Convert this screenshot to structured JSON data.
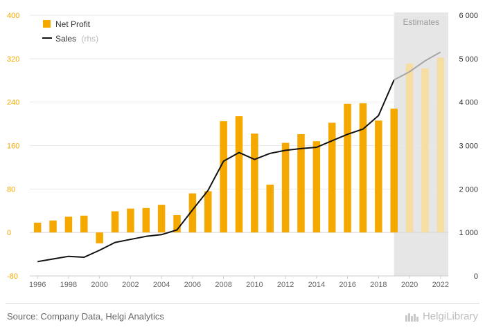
{
  "chart_data": {
    "type": "bar",
    "x": [
      1996,
      1997,
      1998,
      1999,
      2000,
      2001,
      2002,
      2003,
      2004,
      2005,
      2006,
      2007,
      2008,
      2009,
      2010,
      2011,
      2012,
      2013,
      2014,
      2015,
      2016,
      2017,
      2018,
      2019,
      2020,
      2021,
      2022
    ],
    "x_tick_labels": [
      "1996",
      "1998",
      "2000",
      "2002",
      "2004",
      "2006",
      "2008",
      "2010",
      "2012",
      "2014",
      "2016",
      "2018",
      "2020",
      "2022"
    ],
    "series": [
      {
        "name": "Net Profit",
        "type": "bar",
        "axis": "left",
        "color": "#f5a800",
        "values": [
          18,
          22,
          29,
          31,
          -20,
          39,
          44,
          45,
          51,
          32,
          72,
          76,
          205,
          214,
          182,
          88,
          165,
          181,
          168,
          202,
          237,
          238,
          206,
          228,
          311,
          302,
          322
        ]
      },
      {
        "name": "Sales",
        "name_note": "(rhs)",
        "type": "line",
        "axis": "right",
        "color": "#111111",
        "values": [
          330,
          390,
          450,
          430,
          590,
          770,
          840,
          910,
          950,
          1060,
          1520,
          1970,
          2640,
          2840,
          2680,
          2820,
          2890,
          2930,
          2960,
          3110,
          3260,
          3380,
          3690,
          4510,
          4700,
          4950,
          5150
        ]
      }
    ],
    "left_axis": {
      "ylim": [
        -80,
        400
      ],
      "ticks": [
        "-80",
        "0",
        "80",
        "160",
        "240",
        "320",
        "400"
      ],
      "tick_color": "#f2a900"
    },
    "right_axis": {
      "ylim": [
        0,
        6000
      ],
      "ticks": [
        "0",
        "1 000",
        "2 000",
        "3 000",
        "4 000",
        "5 000",
        "6 000"
      ]
    },
    "estimates": {
      "label": "Estimates",
      "from_year": 2020,
      "to_year": 2022,
      "shade_color": "#e6e6e6",
      "bar_color": "#f6dea2",
      "line_color": "#a6a6a6"
    },
    "grid": true,
    "legend_position": "top-left"
  },
  "footer": {
    "source": "Source: Company Data, Helgi Analytics",
    "brand": "HelgiLibrary"
  }
}
